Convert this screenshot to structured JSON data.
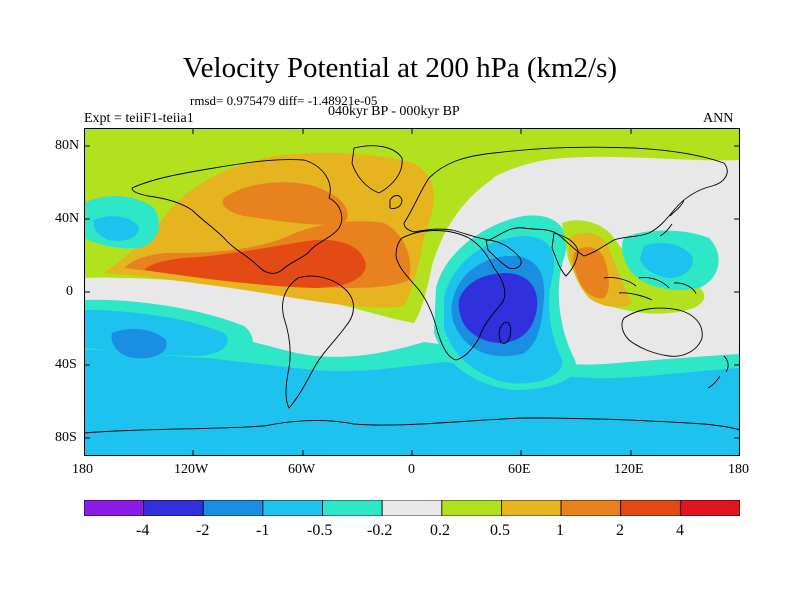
{
  "map": {
    "title": "Velocity Potential at 200 hPa (km2/s)",
    "stats": "rmsd= 0.975479  diff= -1.48921e-05",
    "expt_label": "Expt = teiiF1-teiia1",
    "period_label": "040kyr BP - 000kyr BP",
    "season_label": "ANN",
    "lat_labels": [
      "80N",
      "40N",
      "0",
      "40S",
      "80S"
    ],
    "lon_labels": [
      "180",
      "120W",
      "60W",
      "0",
      "60E",
      "120E",
      "180"
    ],
    "extent": {
      "lon": [
        -180,
        180
      ],
      "lat": [
        -90,
        90
      ]
    }
  },
  "colorbar": {
    "labels": [
      "-4",
      "-2",
      "-1",
      "-0.5",
      "-0.2",
      "0.2",
      "0.5",
      "1",
      "2",
      "4"
    ],
    "colors": [
      "#8a1be6",
      "#3030dc",
      "#1a8ee0",
      "#1ec2ee",
      "#2ee6c8",
      "#e8e8e8",
      "#b2e11e",
      "#e6b41e",
      "#e8821e",
      "#e44a14",
      "#e0141e"
    ],
    "edges": [
      "left",
      "right"
    ]
  },
  "colors": {
    "neutral": "#e8e8e8",
    "pos_0_2": "#b2e11e",
    "pos_0_5": "#e6b41e",
    "pos_1": "#e8821e",
    "pos_2": "#e44a14",
    "neg_0_2": "#2ee6c8",
    "neg_0_5": "#1ec2ee",
    "neg_1": "#1a8ee0",
    "neg_2": "#3030dc"
  }
}
